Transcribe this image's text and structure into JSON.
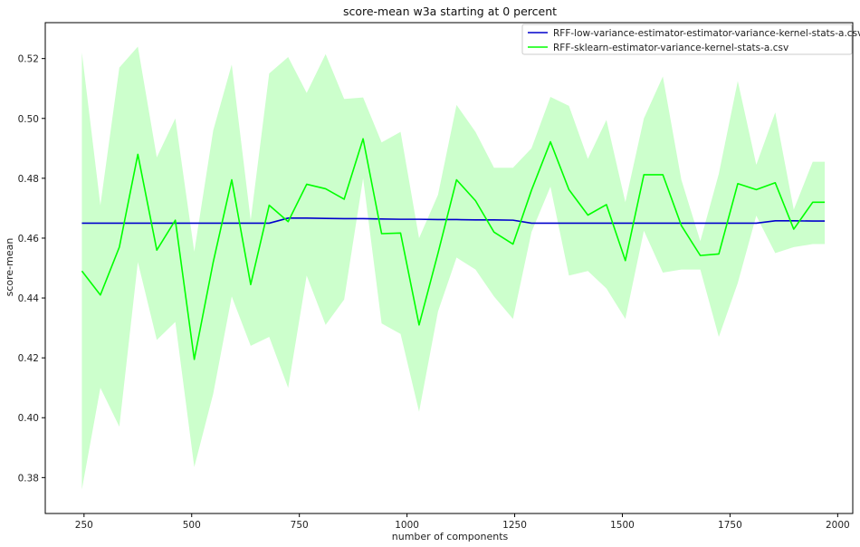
{
  "chart_data": {
    "type": "line",
    "title": "score-mean w3a starting at 0 percent",
    "xlabel": "number of components",
    "ylabel": "score-mean",
    "xlim": [
      160,
      2035
    ],
    "ylim": [
      0.368,
      0.532
    ],
    "xticks": [
      250,
      500,
      750,
      1000,
      1250,
      1500,
      1750,
      2000
    ],
    "yticks": [
      0.38,
      0.4,
      0.42,
      0.44,
      0.46,
      0.48,
      0.5,
      0.52
    ],
    "xtick_labels": [
      "250",
      "500",
      "750",
      "1000",
      "1250",
      "1500",
      "1750",
      "2000"
    ],
    "ytick_labels": [
      "0.38",
      "0.40",
      "0.42",
      "0.44",
      "0.46",
      "0.48",
      "0.50",
      "0.52"
    ],
    "grid": false,
    "legend_position": "top-right",
    "x": [
      245,
      288,
      332,
      375,
      419,
      462,
      506,
      550,
      593,
      637,
      680,
      724,
      767,
      811,
      854,
      898,
      941,
      985,
      1028,
      1072,
      1115,
      1159,
      1202,
      1246,
      1289,
      1333,
      1376,
      1420,
      1463,
      1507,
      1550,
      1594,
      1637,
      1681,
      1724,
      1768,
      1811,
      1855,
      1898,
      1942,
      1970
    ],
    "series": [
      {
        "name": "RFF-low-variance-estimator-estimator-variance-kernel-stats-a.csv",
        "color": "#0000cc",
        "values": [
          0.465,
          0.465,
          0.465,
          0.465,
          0.465,
          0.465,
          0.465,
          0.465,
          0.465,
          0.465,
          0.465,
          0.4667,
          0.4667,
          0.4666,
          0.4665,
          0.4665,
          0.4664,
          0.4663,
          0.4663,
          0.4662,
          0.4662,
          0.4661,
          0.4661,
          0.466,
          0.465,
          0.465,
          0.465,
          0.465,
          0.465,
          0.465,
          0.465,
          0.465,
          0.465,
          0.465,
          0.465,
          0.465,
          0.465,
          0.4658,
          0.4658,
          0.4657,
          0.4657
        ]
      },
      {
        "name": "RFF-sklearn-estimator-variance-kernel-stats-a.csv",
        "color": "#00ff00",
        "band_color": "#ccffcc",
        "values": [
          0.449,
          0.441,
          0.457,
          0.488,
          0.456,
          0.466,
          0.4195,
          0.452,
          0.4795,
          0.4445,
          0.471,
          0.4655,
          0.478,
          0.4765,
          0.473,
          0.4932,
          0.4615,
          0.4617,
          0.431,
          0.455,
          0.4795,
          0.4725,
          0.462,
          0.458,
          0.476,
          0.4922,
          0.4762,
          0.4677,
          0.4712,
          0.4525,
          0.4812,
          0.4812,
          0.4642,
          0.4542,
          0.4547,
          0.4782,
          0.4762,
          0.4785,
          0.463,
          0.472,
          0.472
        ],
        "upper": [
          0.522,
          0.471,
          0.517,
          0.524,
          0.487,
          0.5,
          0.4555,
          0.496,
          0.518,
          0.466,
          0.515,
          0.5205,
          0.5085,
          0.5215,
          0.5065,
          0.507,
          0.492,
          0.4955,
          0.46,
          0.4745,
          0.5045,
          0.4955,
          0.4835,
          0.4835,
          0.49,
          0.5072,
          0.5042,
          0.4865,
          0.4995,
          0.472,
          0.5,
          0.514,
          0.4795,
          0.459,
          0.4815,
          0.5125,
          0.4845,
          0.502,
          0.4695,
          0.4855,
          0.4855
        ],
        "lower": [
          0.376,
          0.41,
          0.397,
          0.452,
          0.426,
          0.432,
          0.3835,
          0.408,
          0.4405,
          0.424,
          0.427,
          0.41,
          0.4475,
          0.431,
          0.4395,
          0.48,
          0.4315,
          0.428,
          0.402,
          0.4355,
          0.4535,
          0.4495,
          0.4405,
          0.433,
          0.462,
          0.4772,
          0.4475,
          0.449,
          0.4432,
          0.433,
          0.4625,
          0.4485,
          0.4495,
          0.4495,
          0.427,
          0.445,
          0.4675,
          0.455,
          0.457,
          0.458,
          0.458
        ]
      }
    ]
  }
}
